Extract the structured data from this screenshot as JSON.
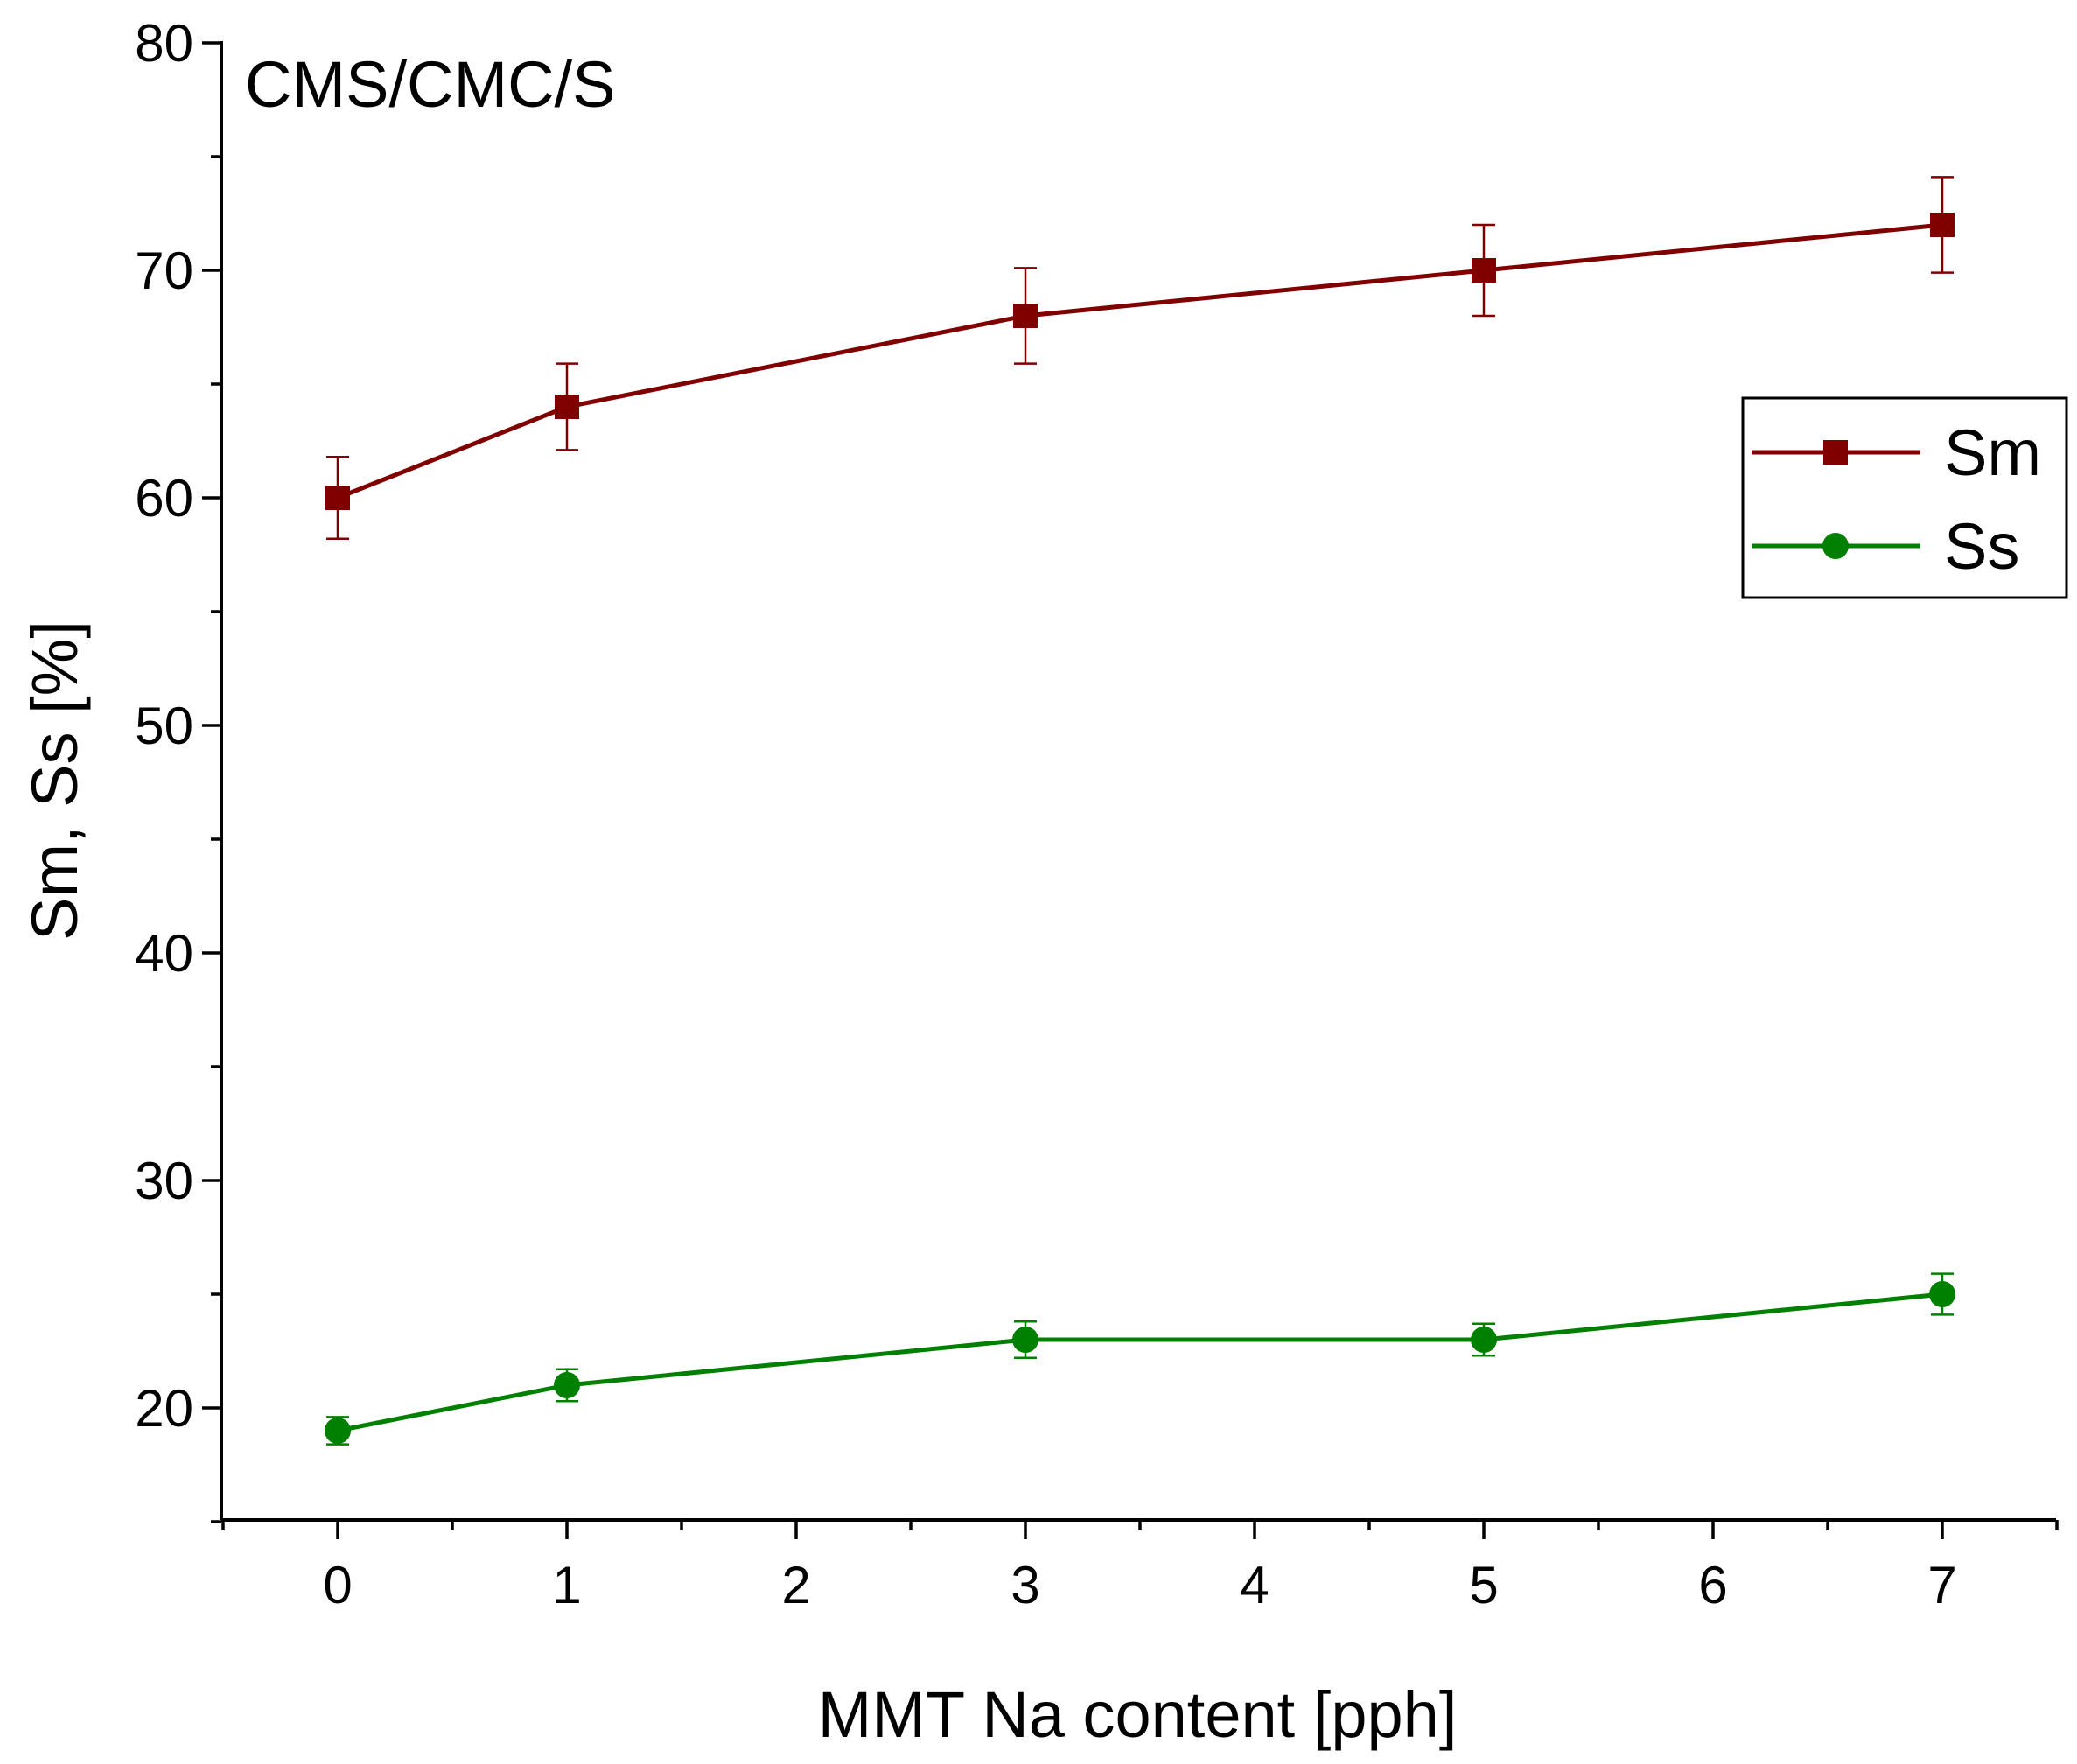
{
  "chart_data": {
    "type": "line",
    "annotation": "CMS/CMC/S",
    "xlabel": "MMT Na content [pph]",
    "ylabel": "Sm, Ss [%]",
    "xlim": [
      -0.5,
      7.5
    ],
    "ylim": [
      15,
      80
    ],
    "xticks": [
      0,
      1,
      2,
      3,
      4,
      5,
      6,
      7
    ],
    "xtick_labels": [
      "0",
      "1",
      "2",
      "3",
      "4",
      "5",
      "6",
      "7"
    ],
    "yticks": [
      20,
      30,
      40,
      50,
      60,
      70,
      80
    ],
    "ytick_labels": [
      "20",
      "30",
      "40",
      "50",
      "60",
      "70",
      "80"
    ],
    "x": [
      0,
      1,
      3,
      5,
      7
    ],
    "series": [
      {
        "name": "Sm",
        "values": [
          60,
          64,
          68,
          70,
          72
        ],
        "errors": [
          1.8,
          1.9,
          2.1,
          2.0,
          2.1
        ],
        "color": "#800000",
        "marker": "square"
      },
      {
        "name": "Ss",
        "values": [
          19,
          21,
          23,
          23,
          25
        ],
        "errors": [
          0.6,
          0.7,
          0.8,
          0.7,
          0.9
        ],
        "color": "#008000",
        "marker": "circle"
      }
    ],
    "legend_position": "top-right",
    "grid": false
  }
}
